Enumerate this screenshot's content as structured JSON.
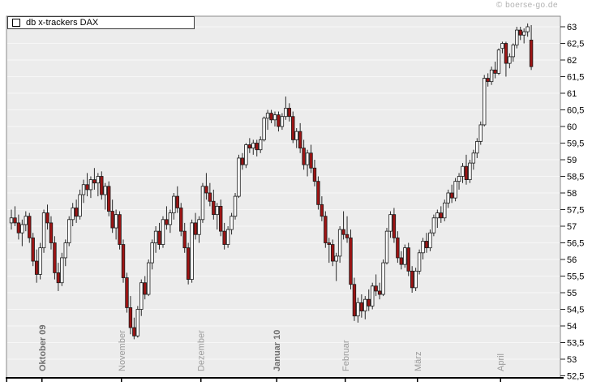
{
  "header": {
    "copyright": "© boerse-go.de"
  },
  "chart_data": {
    "type": "candlestick",
    "series_name": "db x-trackers DAX",
    "legend": [
      "db x-trackers DAX"
    ],
    "y_axis": {
      "min": 52.5,
      "max": 63,
      "step": 0.5,
      "labels": [
        "63",
        "62,5",
        "62",
        "61,5",
        "61",
        "60,5",
        "60",
        "59,5",
        "59",
        "58,5",
        "58",
        "57,5",
        "57",
        "56,5",
        "56",
        "55,5",
        "55",
        "54,5",
        "54",
        "53,5",
        "53",
        "52,5"
      ]
    },
    "x_axis": {
      "months": [
        {
          "label": "Oktober 09",
          "bold": true,
          "start_index": 9
        },
        {
          "label": "November",
          "bold": false,
          "start_index": 31
        },
        {
          "label": "Dezember",
          "bold": false,
          "start_index": 53
        },
        {
          "label": "Januar 10",
          "bold": true,
          "start_index": 74
        },
        {
          "label": "Februar",
          "bold": false,
          "start_index": 93
        },
        {
          "label": "März",
          "bold": false,
          "start_index": 113
        },
        {
          "label": "April",
          "bold": false,
          "start_index": 136
        }
      ]
    },
    "colors": {
      "up": "#ffffff",
      "down": "#9e1414",
      "border": "#1a1a1a",
      "wick": "#2a2a2a",
      "plot_bg": "#ececec",
      "grid": "#f7f7f7",
      "frame": "#8a8a8a",
      "axis": "#000000",
      "month_label": "#9a9a9a",
      "month_label_bold": "#6f6f6f",
      "y_label": "#000000"
    },
    "grid": true,
    "legend_position": "top-left",
    "candles_ohlc": [
      [
        57.1,
        57.5,
        56.9,
        57.25
      ],
      [
        57.25,
        57.6,
        57.0,
        57.1
      ],
      [
        57.1,
        57.35,
        56.6,
        56.8
      ],
      [
        56.8,
        57.2,
        56.4,
        57.05
      ],
      [
        57.05,
        57.45,
        56.85,
        57.3
      ],
      [
        57.3,
        57.4,
        56.5,
        56.65
      ],
      [
        56.65,
        56.8,
        55.8,
        55.95
      ],
      [
        55.95,
        56.3,
        55.3,
        55.55
      ],
      [
        55.55,
        56.5,
        55.4,
        56.35
      ],
      [
        56.35,
        57.5,
        56.2,
        57.4
      ],
      [
        57.4,
        57.65,
        56.9,
        57.1
      ],
      [
        57.1,
        57.3,
        56.3,
        56.5
      ],
      [
        56.5,
        56.7,
        55.4,
        55.6
      ],
      [
        55.6,
        55.9,
        55.05,
        55.3
      ],
      [
        55.3,
        56.2,
        55.2,
        56.05
      ],
      [
        56.05,
        56.6,
        55.8,
        56.5
      ],
      [
        56.5,
        57.3,
        56.4,
        57.2
      ],
      [
        57.2,
        57.7,
        57.0,
        57.55
      ],
      [
        57.55,
        57.8,
        57.1,
        57.3
      ],
      [
        57.3,
        58.1,
        57.2,
        57.95
      ],
      [
        57.95,
        58.4,
        57.7,
        58.25
      ],
      [
        58.25,
        58.6,
        57.9,
        58.1
      ],
      [
        58.1,
        58.5,
        57.85,
        58.4
      ],
      [
        58.4,
        58.75,
        58.1,
        58.3
      ],
      [
        58.3,
        58.6,
        57.9,
        58.5
      ],
      [
        58.5,
        58.65,
        57.8,
        57.95
      ],
      [
        57.95,
        58.3,
        57.5,
        58.2
      ],
      [
        58.2,
        58.35,
        57.3,
        57.45
      ],
      [
        57.45,
        57.8,
        56.8,
        56.95
      ],
      [
        56.95,
        57.5,
        56.6,
        57.35
      ],
      [
        57.35,
        57.45,
        56.3,
        56.45
      ],
      [
        56.45,
        56.6,
        55.3,
        55.45
      ],
      [
        55.45,
        55.6,
        54.4,
        54.55
      ],
      [
        54.55,
        54.9,
        53.75,
        53.95
      ],
      [
        53.95,
        54.25,
        53.6,
        53.7
      ],
      [
        53.7,
        54.6,
        53.65,
        54.5
      ],
      [
        54.5,
        55.4,
        54.3,
        55.3
      ],
      [
        55.3,
        55.5,
        54.8,
        54.95
      ],
      [
        54.95,
        56.0,
        54.9,
        55.9
      ],
      [
        55.9,
        56.6,
        55.7,
        56.5
      ],
      [
        56.5,
        57.0,
        56.2,
        56.85
      ],
      [
        56.85,
        57.1,
        56.3,
        56.45
      ],
      [
        56.45,
        57.3,
        56.35,
        57.2
      ],
      [
        57.2,
        57.6,
        56.9,
        57.05
      ],
      [
        57.05,
        57.5,
        56.8,
        57.4
      ],
      [
        57.4,
        58.0,
        57.2,
        57.9
      ],
      [
        57.9,
        58.2,
        57.4,
        57.55
      ],
      [
        57.55,
        57.7,
        56.7,
        56.85
      ],
      [
        56.85,
        57.1,
        56.2,
        56.35
      ],
      [
        56.35,
        56.5,
        55.25,
        55.4
      ],
      [
        55.4,
        57.2,
        55.3,
        57.1
      ],
      [
        57.1,
        57.4,
        56.6,
        56.75
      ],
      [
        56.75,
        57.3,
        56.5,
        57.2
      ],
      [
        57.2,
        58.3,
        57.1,
        58.2
      ],
      [
        58.2,
        58.6,
        57.8,
        58.0
      ],
      [
        58.0,
        58.3,
        57.6,
        57.75
      ],
      [
        57.75,
        58.1,
        57.2,
        57.35
      ],
      [
        57.35,
        57.7,
        56.9,
        57.6
      ],
      [
        57.6,
        57.8,
        56.7,
        56.85
      ],
      [
        56.85,
        57.1,
        56.3,
        56.45
      ],
      [
        56.45,
        57.0,
        56.35,
        56.9
      ],
      [
        56.9,
        57.4,
        56.75,
        57.3
      ],
      [
        57.3,
        58.0,
        57.2,
        57.9
      ],
      [
        57.9,
        59.15,
        57.85,
        59.05
      ],
      [
        59.05,
        59.2,
        58.7,
        58.85
      ],
      [
        58.85,
        59.5,
        58.75,
        59.45
      ],
      [
        59.45,
        59.65,
        59.2,
        59.35
      ],
      [
        59.35,
        59.6,
        59.15,
        59.5
      ],
      [
        59.5,
        59.6,
        59.1,
        59.3
      ],
      [
        59.3,
        59.7,
        59.2,
        59.6
      ],
      [
        59.6,
        60.3,
        59.55,
        60.25
      ],
      [
        60.25,
        60.5,
        59.9,
        60.4
      ],
      [
        60.4,
        60.5,
        60.1,
        60.2
      ],
      [
        60.2,
        60.45,
        60.0,
        60.35
      ],
      [
        60.35,
        60.45,
        59.85,
        60.0
      ],
      [
        60.0,
        60.4,
        59.9,
        60.3
      ],
      [
        60.3,
        60.9,
        60.2,
        60.55
      ],
      [
        60.55,
        60.7,
        60.15,
        60.3
      ],
      [
        60.3,
        60.45,
        59.5,
        59.6
      ],
      [
        59.6,
        59.95,
        59.35,
        59.85
      ],
      [
        59.85,
        60.1,
        59.2,
        59.35
      ],
      [
        59.35,
        59.6,
        58.7,
        58.85
      ],
      [
        58.85,
        59.3,
        58.5,
        59.2
      ],
      [
        59.2,
        59.45,
        58.6,
        58.75
      ],
      [
        58.75,
        59.0,
        58.2,
        58.35
      ],
      [
        58.35,
        58.5,
        57.5,
        57.65
      ],
      [
        57.65,
        57.9,
        57.15,
        57.3
      ],
      [
        57.3,
        57.45,
        56.35,
        56.5
      ],
      [
        56.5,
        56.65,
        55.9,
        56.45
      ],
      [
        56.45,
        56.6,
        55.8,
        55.95
      ],
      [
        55.95,
        56.2,
        55.35,
        56.1
      ],
      [
        56.1,
        57.0,
        55.9,
        56.9
      ],
      [
        56.9,
        57.45,
        56.6,
        56.75
      ],
      [
        56.75,
        57.3,
        56.5,
        56.65
      ],
      [
        56.65,
        56.9,
        55.1,
        55.25
      ],
      [
        55.25,
        55.45,
        54.15,
        54.3
      ],
      [
        54.3,
        54.85,
        54.1,
        54.7
      ],
      [
        54.7,
        54.95,
        54.25,
        54.45
      ],
      [
        54.45,
        54.9,
        54.2,
        54.8
      ],
      [
        54.8,
        55.1,
        54.45,
        54.6
      ],
      [
        54.6,
        55.3,
        54.5,
        55.2
      ],
      [
        55.2,
        55.55,
        54.9,
        55.05
      ],
      [
        55.05,
        55.3,
        54.8,
        54.95
      ],
      [
        54.95,
        56.0,
        54.9,
        55.9
      ],
      [
        55.9,
        56.95,
        55.85,
        56.85
      ],
      [
        56.85,
        57.45,
        56.65,
        57.35
      ],
      [
        57.35,
        57.55,
        56.5,
        56.65
      ],
      [
        56.65,
        56.85,
        55.9,
        56.05
      ],
      [
        56.05,
        56.25,
        55.7,
        55.85
      ],
      [
        55.85,
        56.45,
        55.75,
        56.35
      ],
      [
        56.35,
        56.5,
        55.5,
        55.65
      ],
      [
        55.65,
        55.8,
        55.0,
        55.15
      ],
      [
        55.15,
        55.75,
        55.05,
        55.65
      ],
      [
        55.65,
        56.3,
        55.55,
        56.2
      ],
      [
        56.2,
        56.65,
        56.0,
        56.55
      ],
      [
        56.55,
        56.8,
        56.2,
        56.35
      ],
      [
        56.35,
        56.9,
        56.25,
        56.8
      ],
      [
        56.8,
        57.35,
        56.7,
        57.25
      ],
      [
        57.25,
        57.5,
        56.95,
        57.4
      ],
      [
        57.4,
        57.6,
        57.1,
        57.25
      ],
      [
        57.25,
        57.8,
        57.15,
        57.7
      ],
      [
        57.7,
        58.1,
        57.55,
        58.0
      ],
      [
        58.0,
        58.25,
        57.7,
        57.85
      ],
      [
        57.85,
        58.45,
        57.75,
        58.35
      ],
      [
        58.35,
        58.6,
        58.1,
        58.5
      ],
      [
        58.5,
        58.9,
        58.3,
        58.8
      ],
      [
        58.8,
        59.15,
        58.25,
        58.4
      ],
      [
        58.4,
        59.0,
        58.3,
        58.9
      ],
      [
        58.9,
        59.3,
        58.7,
        59.2
      ],
      [
        59.2,
        59.65,
        59.05,
        59.55
      ],
      [
        59.55,
        60.15,
        59.45,
        60.05
      ],
      [
        60.05,
        61.55,
        60.0,
        61.45
      ],
      [
        61.45,
        61.6,
        61.2,
        61.35
      ],
      [
        61.35,
        61.8,
        61.25,
        61.7
      ],
      [
        61.7,
        61.95,
        61.45,
        61.6
      ],
      [
        61.6,
        62.35,
        61.55,
        62.3
      ],
      [
        62.35,
        62.55,
        62.2,
        62.5
      ],
      [
        62.5,
        62.55,
        61.5,
        61.9
      ],
      [
        61.9,
        62.2,
        61.75,
        62.1
      ],
      [
        62.1,
        62.5,
        61.95,
        62.45
      ],
      [
        62.45,
        63.0,
        62.35,
        62.9
      ],
      [
        62.9,
        63.0,
        62.6,
        62.75
      ],
      [
        62.75,
        62.95,
        62.5,
        62.85
      ],
      [
        62.85,
        63.1,
        62.7,
        63.0
      ],
      [
        62.6,
        63.05,
        61.7,
        61.8
      ]
    ]
  }
}
